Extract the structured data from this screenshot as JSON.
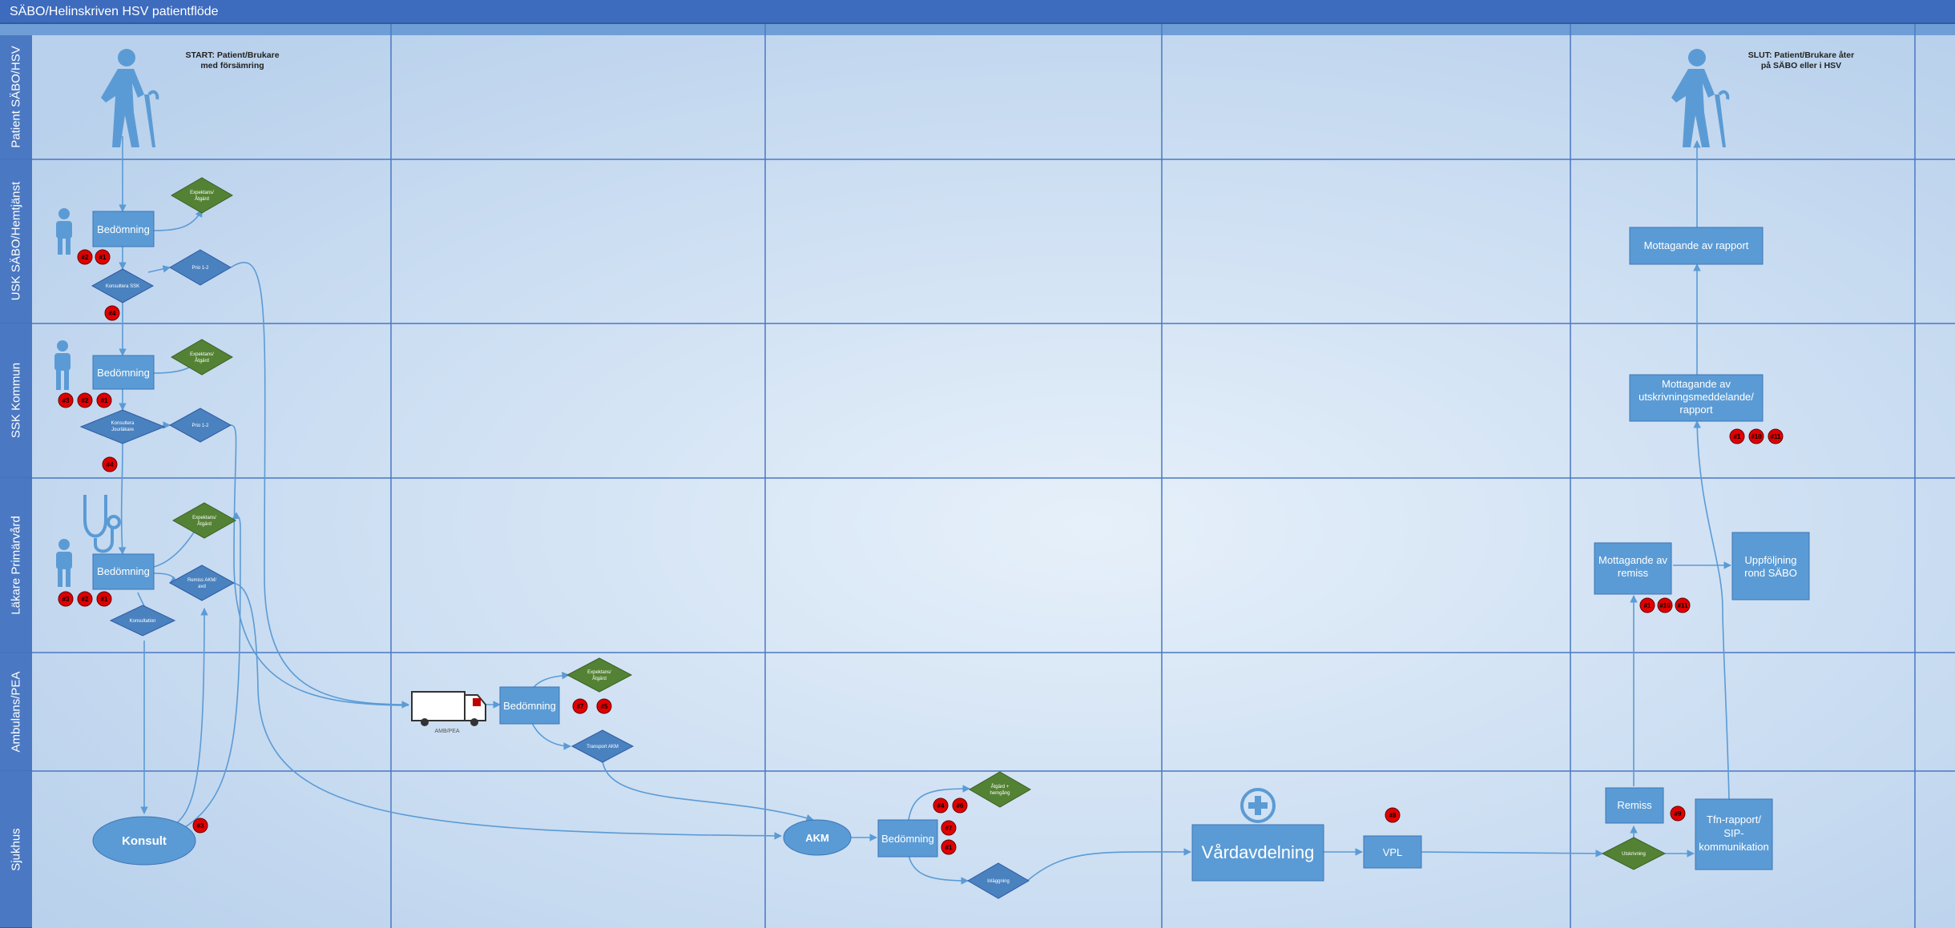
{
  "title": "SÄBO/Helinskriven HSV patientflöde",
  "lanes": [
    {
      "id": "patient",
      "label": "Patient SÄBO/HSV"
    },
    {
      "id": "usk",
      "label": "USK SÄBO/Hemtjänst"
    },
    {
      "id": "ssk",
      "label": "SSK Kommun"
    },
    {
      "id": "lakare",
      "label": "Läkare Primärvård"
    },
    {
      "id": "ambulans",
      "label": "Ambulans/PEA"
    },
    {
      "id": "sjukhus",
      "label": "Sjukhus"
    }
  ],
  "start_label": {
    "line1": "START: Patient/Brukare",
    "line2": "med försämring"
  },
  "end_label": {
    "line1": "SLUT: Patient/Brukare åter",
    "line2": "på SÄBO eller i HSV"
  },
  "processes": {
    "bedomning_usk": "Bedömning",
    "bedomning_ssk": "Bedömning",
    "bedomning_lak": "Bedömning",
    "bedomning_amb": "Bedömning",
    "bedomning_akm": "Bedömning",
    "mottagande_rapport": "Mottagande av rapport",
    "mottagande_utskr": {
      "l1": "Mottagande av",
      "l2": "utskrivningsmeddelande/",
      "l3": "rapport"
    },
    "mottagande_remiss": {
      "l1": "Mottagande av",
      "l2": "remiss"
    },
    "uppfoljning": {
      "l1": "Uppföljning",
      "l2": "rond SÄBO"
    },
    "remiss": "Remiss",
    "tfn_rapport": {
      "l1": "Tfn-rapport/",
      "l2": "SIP-",
      "l3": "kommunikation"
    },
    "vardavdelning": "Vårdavdelning",
    "vpl": "VPL",
    "akm": "AKM",
    "konsult": "Konsult"
  },
  "decisions": {
    "egenvard_usk": {
      "l1": "Expektans/",
      "l2": "Åtgärd"
    },
    "konsultera_usk": "Konsultera SSK",
    "prio_usk": "Prio 1-2",
    "egenvard_ssk": {
      "l1": "Expektans/",
      "l2": "Åtgärd"
    },
    "konsultera_ssk": {
      "l1": "Konsultera",
      "l2": "Jourläkare"
    },
    "prio_ssk": "Prio 1-2",
    "egenvard_lak": {
      "l1": "Expektans/",
      "l2": "Åtgärd"
    },
    "remiss_lak": {
      "l1": "Remiss AKM/",
      "l2": "avd"
    },
    "konsultation_lak": "Konsultation",
    "egenvard_amb": {
      "l1": "Expektans/",
      "l2": "Åtgärd"
    },
    "transport_amb": "Transport AKM",
    "atgard_akm": {
      "l1": "Åtgärd +",
      "l2": "hemgång"
    },
    "inlaggning": "Inläggning",
    "utskrivning": "Utskrivning"
  },
  "ambulance_caption": "AMB/PEA",
  "badges": {
    "usk": [
      "#2",
      "#1"
    ],
    "usk2": [
      "#4"
    ],
    "ssk": [
      "#3",
      "#2",
      "#1"
    ],
    "ssk2": [
      "#4"
    ],
    "lak": [
      "#3",
      "#2",
      "#1"
    ],
    "amb": [
      "#7",
      "#5"
    ],
    "konsult": [
      "#3"
    ],
    "akm_top": [
      "#4",
      "#6"
    ],
    "akm_mid": [
      "#7"
    ],
    "akm_bot": [
      "#1"
    ],
    "vpl": [
      "#8"
    ],
    "remiss": [
      "#9"
    ],
    "mott_remiss": [
      "#1",
      "#10",
      "#11"
    ],
    "mott_utskr": [
      "#1",
      "#10",
      "#11"
    ]
  },
  "colors": {
    "title_bar": "#3d6bbd",
    "lane_header": "#4a78c2",
    "process": "#5b9bd5",
    "decision_blue": "#4a82bf",
    "decision_green": "#548235",
    "connector": "#5b9bd5",
    "badge": "#e00000",
    "person_icon": "#5b9bd5"
  },
  "icons": [
    "elderly-person-icon",
    "person-icon",
    "stethoscope-icon",
    "ambulance-icon",
    "hospital-cross-icon"
  ]
}
